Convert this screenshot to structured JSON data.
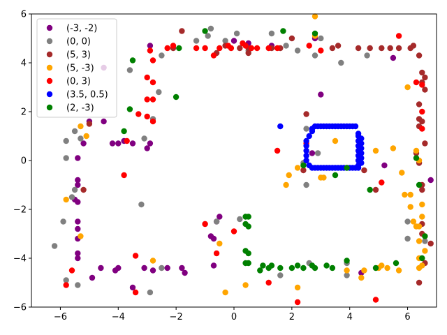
{
  "chart_data": {
    "type": "scatter",
    "title": "",
    "xlabel": "",
    "ylabel": "",
    "xlim": [
      -7,
      7
    ],
    "ylim": [
      -6,
      6
    ],
    "xticks": [
      -6,
      -4,
      -2,
      0,
      2,
      4,
      6
    ],
    "yticks": [
      -6,
      -4,
      -2,
      0,
      2,
      4,
      6
    ],
    "grid": false,
    "legend_position": "upper-left",
    "series": [
      {
        "name": "(-3, -2)",
        "color": "#800080",
        "points": [
          [
            -4.2,
            0.7
          ],
          [
            -4.0,
            0.7
          ],
          [
            -3.8,
            0.8
          ],
          [
            -3.5,
            0.7
          ],
          [
            -3.0,
            0.5
          ],
          [
            -2.9,
            0.7
          ],
          [
            -5.2,
            0.7
          ],
          [
            -5.4,
            0.1
          ],
          [
            -5.4,
            -0.8
          ],
          [
            -5.4,
            -1.0
          ],
          [
            -5.4,
            -1.7
          ],
          [
            -5.5,
            -1.6
          ],
          [
            -5.4,
            -2.5
          ],
          [
            -5.4,
            -2.8
          ],
          [
            -5.4,
            -3.2
          ],
          [
            -5.4,
            -3.8
          ],
          [
            -5.4,
            -4.0
          ],
          [
            -4.9,
            -4.8
          ],
          [
            -4.6,
            -4.4
          ],
          [
            -4.1,
            -4.5
          ],
          [
            -4.0,
            -4.4
          ],
          [
            -3.5,
            -5.2
          ],
          [
            -3.1,
            -4.4
          ],
          [
            -2.8,
            -4.5
          ],
          [
            -2.3,
            -4.4
          ],
          [
            -1.8,
            -4.4
          ],
          [
            -1.7,
            -4.6
          ],
          [
            -0.7,
            -4.3
          ],
          [
            -0.8,
            -3.1
          ],
          [
            -0.7,
            -3.2
          ],
          [
            -0.5,
            -2.3
          ],
          [
            -0.6,
            -2.5
          ],
          [
            -2.9,
            4.7
          ],
          [
            0.0,
            4.9
          ],
          [
            0.5,
            4.8
          ],
          [
            1.3,
            4.7
          ],
          [
            2.8,
            5.0
          ],
          [
            5.5,
            4.2
          ],
          [
            3.0,
            2.7
          ],
          [
            2.7,
            0.3
          ],
          [
            5.2,
            -0.2
          ],
          [
            6.8,
            -0.8
          ],
          [
            4.4,
            -4.6
          ],
          [
            -4.5,
            1.6
          ],
          [
            -5.0,
            1.6
          ],
          [
            -4.5,
            3.8
          ]
        ]
      },
      {
        "name": "(0, 0)",
        "color": "#808080",
        "points": [
          [
            -6.2,
            -3.5
          ],
          [
            -5.9,
            -2.5
          ],
          [
            -5.8,
            -4.9
          ],
          [
            -5.8,
            0.1
          ],
          [
            -5.5,
            -1.2
          ],
          [
            -5.6,
            -1.5
          ],
          [
            -5.4,
            -5.1
          ],
          [
            -5.8,
            0.8
          ],
          [
            -5.5,
            1.2
          ],
          [
            -5.3,
            0.9
          ],
          [
            -3.6,
            3.7
          ],
          [
            -3.1,
            0.9
          ],
          [
            -3.2,
            -1.8
          ],
          [
            -2.9,
            -5.4
          ],
          [
            -2.5,
            -4.4
          ],
          [
            -2.8,
            1.7
          ],
          [
            -2.6,
            2.8
          ],
          [
            -2.5,
            4.3
          ],
          [
            -1.3,
            4.9
          ],
          [
            -0.9,
            5.1
          ],
          [
            -0.8,
            5.4
          ],
          [
            -0.3,
            4.9
          ],
          [
            0.1,
            5.2
          ],
          [
            0.5,
            4.5
          ],
          [
            1.3,
            5.2
          ],
          [
            1.8,
            4.7
          ],
          [
            2.2,
            4.5
          ],
          [
            2.8,
            4.3
          ],
          [
            3.0,
            5.0
          ],
          [
            3.7,
            4.0
          ],
          [
            4.6,
            4.3
          ],
          [
            6.0,
            -2.5
          ],
          [
            6.0,
            -3.2
          ],
          [
            6.6,
            -3.3
          ],
          [
            2.7,
            1.3
          ],
          [
            2.9,
            0.3
          ],
          [
            2.5,
            1.3
          ],
          [
            2.4,
            -0.1
          ],
          [
            2.5,
            -1.0
          ],
          [
            2.6,
            -4.2
          ],
          [
            3.9,
            -4.2
          ],
          [
            3.9,
            -4.7
          ],
          [
            1.6,
            -4.7
          ],
          [
            -1.0,
            -2.6
          ],
          [
            0.2,
            -2.4
          ],
          [
            -0.6,
            -2.5
          ]
        ]
      },
      {
        "name": "(5, 3)",
        "color": "#a52a2a",
        "points": [
          [
            -1.8,
            5.3
          ],
          [
            -0.6,
            4.4
          ],
          [
            -0.3,
            4.7
          ],
          [
            0.2,
            4.6
          ],
          [
            0.5,
            4.6
          ],
          [
            0.5,
            4.4
          ],
          [
            1.3,
            4.6
          ],
          [
            1.6,
            4.6
          ],
          [
            2.0,
            5.0
          ],
          [
            3.4,
            4.6
          ],
          [
            3.6,
            4.7
          ],
          [
            4.3,
            4.6
          ],
          [
            4.7,
            4.6
          ],
          [
            5.1,
            4.6
          ],
          [
            5.4,
            4.6
          ],
          [
            5.7,
            4.6
          ],
          [
            6.1,
            4.6
          ],
          [
            6.2,
            4.7
          ],
          [
            6.4,
            4.3
          ],
          [
            6.5,
            3.6
          ],
          [
            6.6,
            3.4
          ],
          [
            6.5,
            3.2
          ],
          [
            6.6,
            2.9
          ],
          [
            6.4,
            2.3
          ],
          [
            6.4,
            1.7
          ],
          [
            6.4,
            1.4
          ],
          [
            6.5,
            1.6
          ],
          [
            6.6,
            0.7
          ],
          [
            6.3,
            0.3
          ],
          [
            6.4,
            -0.1
          ],
          [
            6.5,
            -1.0
          ],
          [
            6.5,
            -1.2
          ],
          [
            6.5,
            -2.6
          ],
          [
            6.5,
            -3.0
          ],
          [
            6.8,
            -3.4
          ],
          [
            6.6,
            -4.2
          ],
          [
            6.4,
            -5.0
          ],
          [
            4.9,
            -1.2
          ],
          [
            4.5,
            -0.4
          ],
          [
            2.5,
            1.9
          ],
          [
            2.4,
            -0.4
          ],
          [
            -5.2,
            -1.2
          ],
          [
            -5.0,
            1.5
          ],
          [
            -2.1,
            4.6
          ]
        ]
      },
      {
        "name": "(5, -3)",
        "color": "#ffa500",
        "points": [
          [
            2.8,
            5.9
          ],
          [
            2.8,
            5.1
          ],
          [
            6.0,
            3.0
          ],
          [
            6.3,
            0.4
          ],
          [
            6.4,
            0.0
          ],
          [
            6.1,
            -1.4
          ],
          [
            6.1,
            -1.9
          ],
          [
            6.2,
            -2.5
          ],
          [
            6.3,
            -2.7
          ],
          [
            6.4,
            -2.7
          ],
          [
            6.5,
            -1.8
          ],
          [
            6.5,
            -2.3
          ],
          [
            6.4,
            -3.3
          ],
          [
            6.6,
            -3.7
          ],
          [
            6.4,
            -4.0
          ],
          [
            6.5,
            -4.3
          ],
          [
            6.4,
            -4.4
          ],
          [
            5.7,
            -4.5
          ],
          [
            5.3,
            -4.4
          ],
          [
            5.1,
            -4.3
          ],
          [
            5.0,
            -4.4
          ],
          [
            4.5,
            -4.5
          ],
          [
            4.4,
            -4.8
          ],
          [
            3.9,
            -4.5
          ],
          [
            2.2,
            -5.2
          ],
          [
            3.0,
            -0.7
          ],
          [
            1.8,
            -1.0
          ],
          [
            1.9,
            -0.6
          ],
          [
            2.2,
            -0.3
          ],
          [
            3.5,
            0.8
          ],
          [
            4.9,
            0.4
          ],
          [
            5.5,
            0.5
          ],
          [
            5.8,
            -0.5
          ],
          [
            5.9,
            -1.4
          ],
          [
            0.4,
            -5.1
          ],
          [
            -0.3,
            -5.4
          ],
          [
            -0.5,
            -3.4
          ],
          [
            -2.8,
            -4.1
          ],
          [
            -5.3,
            -3.1
          ],
          [
            -5.8,
            -1.6
          ],
          [
            -5.3,
            1.4
          ],
          [
            -5.1,
            1.0
          ],
          [
            3.1,
            -0.7
          ],
          [
            6.6,
            -3.1
          ]
        ]
      },
      {
        "name": "(0, 3)",
        "color": "#ff0000",
        "points": [
          [
            -3.3,
            1.9
          ],
          [
            -3.0,
            1.8
          ],
          [
            -2.8,
            1.6
          ],
          [
            -3.0,
            2.5
          ],
          [
            -2.8,
            2.5
          ],
          [
            -3.0,
            3.4
          ],
          [
            -2.8,
            3.2
          ],
          [
            -2.8,
            4.1
          ],
          [
            -2.9,
            4.5
          ],
          [
            -2.3,
            4.6
          ],
          [
            -2.1,
            4.7
          ],
          [
            -1.3,
            4.6
          ],
          [
            -1.0,
            4.6
          ],
          [
            -0.7,
            4.3
          ],
          [
            -0.5,
            4.6
          ],
          [
            -0.2,
            4.7
          ],
          [
            -0.1,
            4.6
          ],
          [
            0.3,
            4.8
          ],
          [
            0.4,
            4.7
          ],
          [
            0.6,
            4.6
          ],
          [
            0.8,
            4.6
          ],
          [
            1.2,
            4.6
          ],
          [
            1.5,
            4.6
          ],
          [
            2.6,
            4.7
          ],
          [
            3.0,
            4.5
          ],
          [
            5.7,
            5.1
          ],
          [
            6.3,
            3.2
          ],
          [
            6.5,
            3.1
          ],
          [
            6.5,
            2.0
          ],
          [
            6.5,
            1.3
          ],
          [
            2.5,
            0.7
          ],
          [
            1.5,
            0.4
          ],
          [
            5.1,
            -0.9
          ],
          [
            4.9,
            -5.7
          ],
          [
            2.2,
            -5.8
          ],
          [
            1.2,
            -5.0
          ],
          [
            0.0,
            -2.9
          ],
          [
            -0.6,
            -3.8
          ],
          [
            -1.0,
            -2.6
          ],
          [
            -3.4,
            -3.9
          ],
          [
            -3.4,
            -5.4
          ],
          [
            -5.6,
            -4.5
          ],
          [
            -5.8,
            -5.1
          ],
          [
            -3.8,
            -0.6
          ],
          [
            -3.7,
            0.8
          ]
        ]
      },
      {
        "name": "(3.5, 0.5)",
        "color": "#0000ff",
        "points": [
          [
            2.7,
            1.3
          ],
          [
            2.8,
            1.4
          ],
          [
            2.9,
            1.4
          ],
          [
            3.0,
            1.4
          ],
          [
            3.1,
            1.4
          ],
          [
            3.2,
            1.4
          ],
          [
            3.3,
            1.4
          ],
          [
            3.4,
            1.4
          ],
          [
            3.5,
            1.4
          ],
          [
            3.6,
            1.4
          ],
          [
            3.7,
            1.4
          ],
          [
            3.8,
            1.4
          ],
          [
            3.9,
            1.4
          ],
          [
            4.0,
            1.4
          ],
          [
            4.1,
            1.4
          ],
          [
            4.2,
            1.4
          ],
          [
            4.3,
            1.1
          ],
          [
            4.3,
            1.0
          ],
          [
            4.4,
            0.9
          ],
          [
            4.3,
            0.8
          ],
          [
            4.4,
            0.7
          ],
          [
            4.3,
            0.6
          ],
          [
            4.4,
            0.5
          ],
          [
            4.3,
            0.4
          ],
          [
            4.4,
            0.3
          ],
          [
            4.3,
            0.2
          ],
          [
            4.4,
            0.1
          ],
          [
            4.3,
            0.0
          ],
          [
            4.4,
            -0.1
          ],
          [
            4.3,
            -0.2
          ],
          [
            4.3,
            -0.3
          ],
          [
            4.2,
            -0.3
          ],
          [
            4.1,
            -0.3
          ],
          [
            4.0,
            -0.3
          ],
          [
            3.9,
            -0.3
          ],
          [
            3.8,
            -0.3
          ],
          [
            3.7,
            -0.3
          ],
          [
            3.6,
            -0.3
          ],
          [
            3.5,
            -0.3
          ],
          [
            3.4,
            -0.3
          ],
          [
            3.3,
            -0.3
          ],
          [
            3.2,
            -0.3
          ],
          [
            3.1,
            -0.3
          ],
          [
            3.0,
            -0.3
          ],
          [
            2.9,
            -0.3
          ],
          [
            2.8,
            -0.3
          ],
          [
            2.7,
            -0.3
          ],
          [
            2.6,
            -0.2
          ],
          [
            2.5,
            0.0
          ],
          [
            2.5,
            0.2
          ],
          [
            2.5,
            0.4
          ],
          [
            2.5,
            0.6
          ],
          [
            2.5,
            0.8
          ],
          [
            2.6,
            1.0
          ],
          [
            2.7,
            1.2
          ],
          [
            1.6,
            1.4
          ]
        ]
      },
      {
        "name": "(2, -3)",
        "color": "#008000",
        "points": [
          [
            -1.0,
            5.3
          ],
          [
            1.7,
            5.3
          ],
          [
            2.8,
            5.2
          ],
          [
            -3.5,
            4.1
          ],
          [
            -1.9,
            4.6
          ],
          [
            -2.0,
            2.6
          ],
          [
            -3.6,
            2.1
          ],
          [
            -3.8,
            1.2
          ],
          [
            0.4,
            -2.3
          ],
          [
            0.5,
            -2.3
          ],
          [
            0.4,
            -2.6
          ],
          [
            0.5,
            -2.7
          ],
          [
            0.4,
            -3.7
          ],
          [
            0.5,
            -3.8
          ],
          [
            0.4,
            -4.2
          ],
          [
            0.5,
            -4.2
          ],
          [
            0.9,
            -4.5
          ],
          [
            1.0,
            -4.3
          ],
          [
            1.2,
            -4.4
          ],
          [
            1.3,
            -4.3
          ],
          [
            1.6,
            -4.4
          ],
          [
            2.0,
            -4.4
          ],
          [
            2.2,
            -4.3
          ],
          [
            2.4,
            -4.4
          ],
          [
            2.7,
            -4.3
          ],
          [
            2.8,
            -4.4
          ],
          [
            3.2,
            -4.3
          ],
          [
            3.4,
            -4.4
          ],
          [
            3.9,
            -4.1
          ],
          [
            4.9,
            -4.4
          ],
          [
            5.6,
            -4.2
          ],
          [
            6.5,
            -4.0
          ],
          [
            6.6,
            -3.1
          ],
          [
            6.4,
            -1.0
          ],
          [
            6.3,
            0.1
          ],
          [
            3.5,
            -0.6
          ],
          [
            3.9,
            -0.3
          ],
          [
            2.4,
            -0.2
          ],
          [
            4.7,
            -1.2
          ]
        ]
      }
    ]
  }
}
